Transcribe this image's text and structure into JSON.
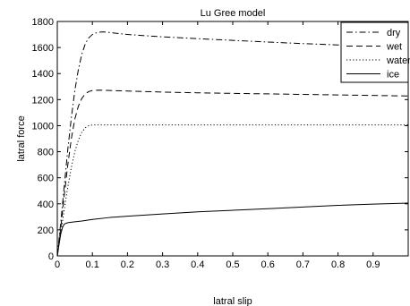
{
  "chart_data": {
    "type": "line",
    "title": "Lu Gree model",
    "xlabel": "latral slip",
    "ylabel": "latral force",
    "xlim": [
      0,
      1
    ],
    "ylim": [
      0,
      1800
    ],
    "xticks": [
      0,
      0.1,
      0.2,
      0.3,
      0.4,
      0.5,
      0.6,
      0.7,
      0.8,
      0.9
    ],
    "yticks": [
      0,
      200,
      400,
      600,
      800,
      1000,
      1200,
      1400,
      1600,
      1800
    ],
    "grid": false,
    "legend_position": "top-right",
    "colors": {
      "line": "#000000",
      "axis": "#000000",
      "background": "#ffffff"
    },
    "series": [
      {
        "name": "dry",
        "style": "dashdot",
        "x": [
          0,
          0.01,
          0.02,
          0.03,
          0.04,
          0.05,
          0.06,
          0.07,
          0.08,
          0.09,
          0.1,
          0.11,
          0.12,
          0.13,
          0.14,
          0.15,
          0.2,
          0.3,
          0.4,
          0.5,
          0.6,
          0.7,
          0.8,
          0.9,
          1.0
        ],
        "y": [
          0,
          260,
          540,
          820,
          1060,
          1270,
          1430,
          1550,
          1630,
          1675,
          1700,
          1712,
          1718,
          1720,
          1718,
          1715,
          1700,
          1682,
          1668,
          1655,
          1642,
          1630,
          1620,
          1610,
          1602
        ]
      },
      {
        "name": "wet",
        "style": "dashed",
        "x": [
          0,
          0.01,
          0.02,
          0.03,
          0.04,
          0.05,
          0.06,
          0.07,
          0.08,
          0.09,
          0.1,
          0.11,
          0.12,
          0.13,
          0.15,
          0.2,
          0.3,
          0.4,
          0.5,
          0.6,
          0.7,
          0.8,
          0.9,
          1.0
        ],
        "y": [
          0,
          220,
          470,
          700,
          900,
          1050,
          1150,
          1210,
          1245,
          1262,
          1270,
          1272,
          1273,
          1272,
          1270,
          1266,
          1258,
          1252,
          1248,
          1244,
          1240,
          1236,
          1232,
          1228
        ]
      },
      {
        "name": "water",
        "style": "dotted",
        "x": [
          0,
          0.01,
          0.02,
          0.03,
          0.04,
          0.05,
          0.06,
          0.07,
          0.08,
          0.09,
          0.1,
          0.12,
          0.2,
          0.3,
          0.4,
          0.5,
          0.6,
          0.7,
          0.8,
          0.9,
          1.0
        ],
        "y": [
          0,
          180,
          360,
          530,
          680,
          800,
          890,
          950,
          985,
          1000,
          1005,
          1006,
          1006,
          1006,
          1006,
          1006,
          1006,
          1006,
          1006,
          1006,
          1006
        ]
      },
      {
        "name": "ice",
        "style": "solid",
        "x": [
          0,
          0.005,
          0.01,
          0.015,
          0.02,
          0.03,
          0.05,
          0.07,
          0.1,
          0.15,
          0.2,
          0.3,
          0.4,
          0.5,
          0.6,
          0.7,
          0.8,
          0.9,
          1.0
        ],
        "y": [
          0,
          90,
          170,
          220,
          245,
          255,
          262,
          268,
          280,
          295,
          305,
          322,
          338,
          350,
          362,
          375,
          388,
          398,
          405
        ]
      }
    ]
  }
}
